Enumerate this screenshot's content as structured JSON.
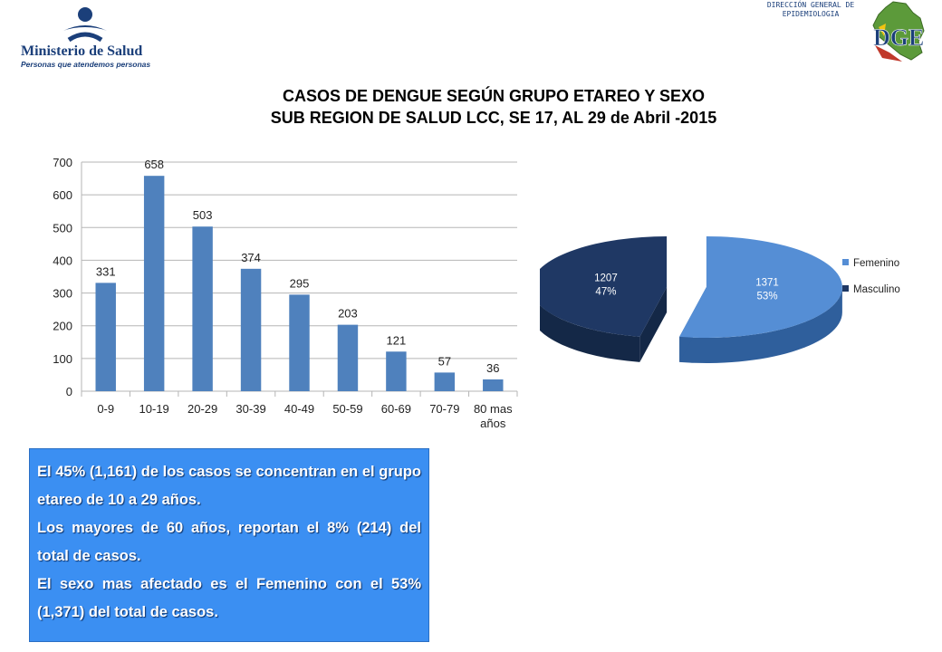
{
  "header": {
    "ministry_name": "Ministerio de Salud",
    "ministry_tagline": "Personas que atendemos personas",
    "dge_caption_line1": "DIRECCIÓN GENERAL DE",
    "dge_caption_line2": "EPIDEMIOLOGIA",
    "dge_logo_text": "DGE"
  },
  "title": {
    "line1": "CASOS DE DENGUE SEGÚN  GRUPO ETAREO Y SEXO",
    "line2": "SUB REGION DE SALUD LCC, SE 17, AL 29 de Abril -2015"
  },
  "chart_data": [
    {
      "type": "bar",
      "categories": [
        "0-9",
        "10-19",
        "20-29",
        "30-39",
        "40-49",
        "50-59",
        "60-69",
        "70-79",
        "80 mas años"
      ],
      "values": [
        331,
        658,
        503,
        374,
        295,
        203,
        121,
        57,
        36
      ],
      "ylim": [
        0,
        700
      ],
      "yticks": [
        0,
        100,
        200,
        300,
        400,
        500,
        600,
        700
      ],
      "grid": true,
      "color": "#4f81bd"
    },
    {
      "type": "pie",
      "labels": [
        "Femenino",
        "Masculino"
      ],
      "values": [
        1371,
        1207
      ],
      "percent_labels": [
        "53%",
        "47%"
      ],
      "colors": [
        "#558ed5",
        "#1f3864"
      ],
      "legend_position": "right",
      "exploded": true,
      "three_d": true
    }
  ],
  "notes": [
    "El 45% (1,161) de los casos se concentran en el grupo etareo de 10 a 29 años.",
    "Los mayores de 60 años, reportan el 8% (214) del total de casos.",
    "El sexo mas afectado es el Femenino con el 53% (1,371) del total de casos."
  ]
}
